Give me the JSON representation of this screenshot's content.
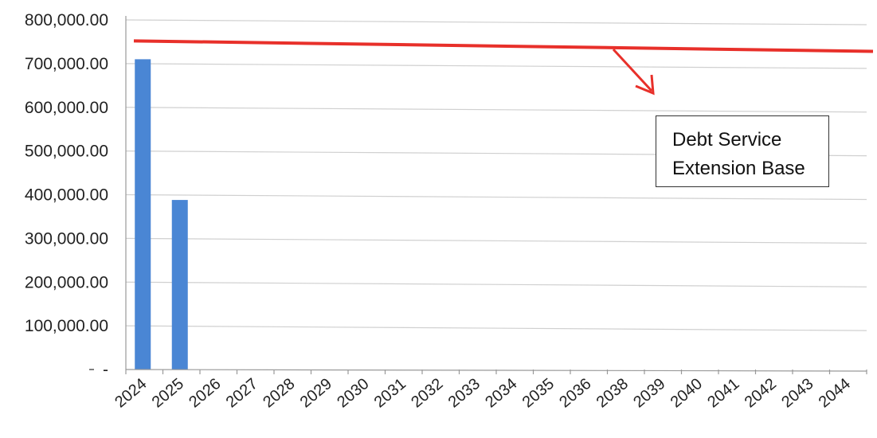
{
  "chart_data": {
    "type": "bar",
    "categories": [
      "2024",
      "2025",
      "2026",
      "2027",
      "2028",
      "2029",
      "2030",
      "2031",
      "2032",
      "2033",
      "2034",
      "2035",
      "2036",
      "2038",
      "2039",
      "2040",
      "2041",
      "2042",
      "2043",
      "2044"
    ],
    "values": [
      710000,
      388000,
      0,
      0,
      0,
      0,
      0,
      0,
      0,
      0,
      0,
      0,
      0,
      0,
      0,
      0,
      0,
      0,
      0,
      0
    ],
    "ylim": [
      0,
      800000
    ],
    "yticks": [
      {
        "value": 0,
        "label": "-"
      },
      {
        "value": 100000,
        "label": "100,000.00"
      },
      {
        "value": 200000,
        "label": "200,000.00"
      },
      {
        "value": 300000,
        "label": "300,000.00"
      },
      {
        "value": 400000,
        "label": "400,000.00"
      },
      {
        "value": 500000,
        "label": "500,000.00"
      },
      {
        "value": 600000,
        "label": "600,000.00"
      },
      {
        "value": 700000,
        "label": "700,000.00"
      },
      {
        "value": 800000,
        "label": "800,000.00"
      }
    ],
    "reference_line": {
      "start_value": 752000,
      "end_value": 728000
    },
    "annotation": {
      "line1": "Debt Service",
      "line2": "Extension Base"
    },
    "grid": true,
    "colors": {
      "bar": "#4a86d4",
      "reference_line": "#e8302a",
      "grid": "#d0d0d0"
    }
  }
}
